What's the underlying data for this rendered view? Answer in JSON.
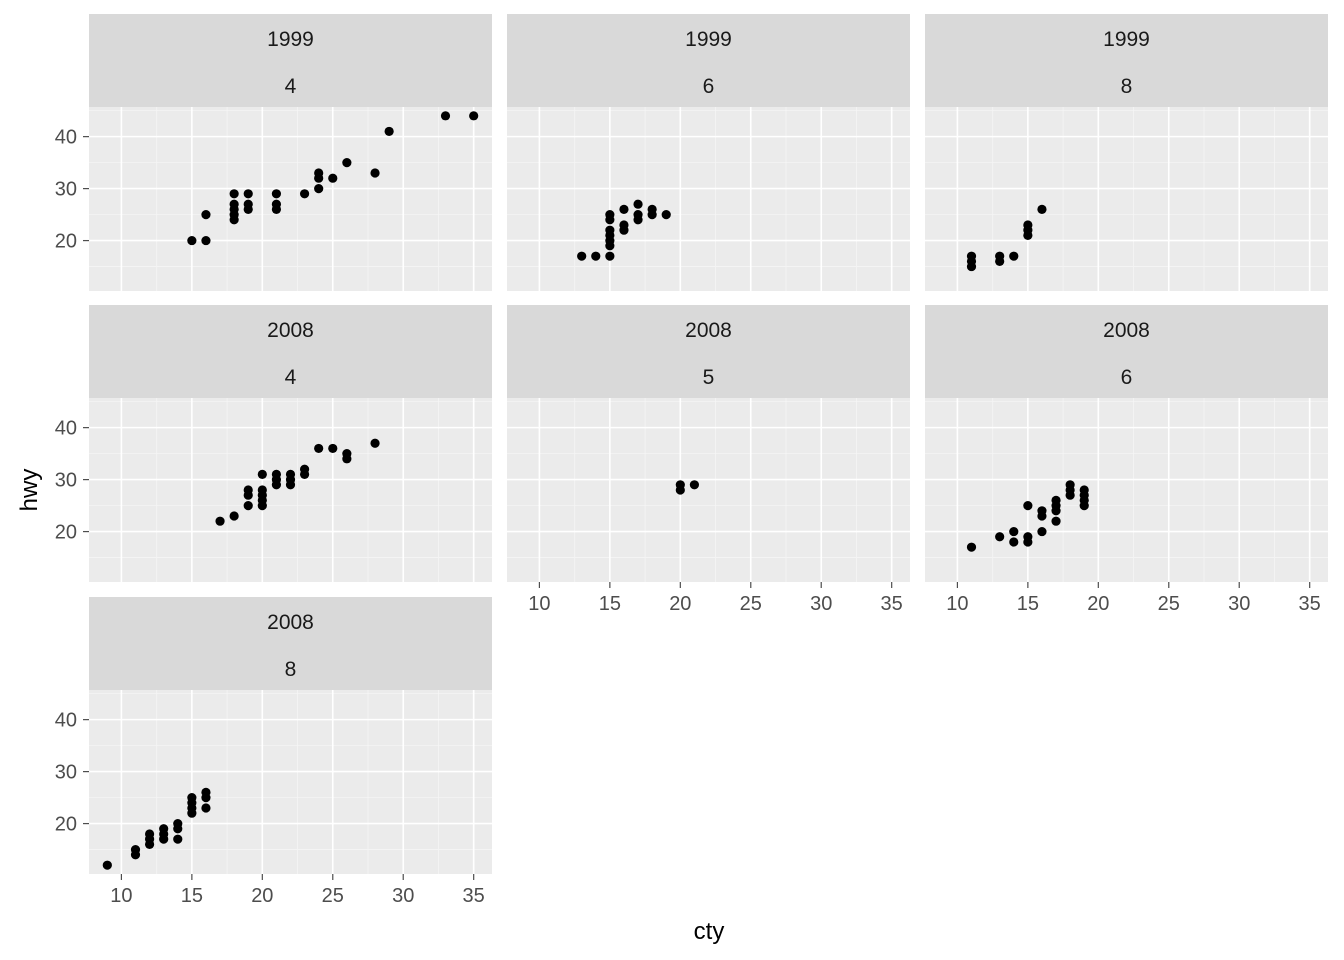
{
  "chart_data": {
    "type": "scatter",
    "facet_by": [
      "year",
      "cyl"
    ],
    "xlabel": "cty",
    "ylabel": "hwy",
    "xlim": [
      7.7,
      36.3
    ],
    "ylim": [
      10.3,
      45.7
    ],
    "x_ticks": [
      10,
      15,
      20,
      25,
      30,
      35
    ],
    "y_ticks": [
      20,
      30,
      40
    ],
    "x_tick_labels": [
      "10",
      "15",
      "20",
      "25",
      "30",
      "35"
    ],
    "y_tick_labels": [
      "20",
      "30",
      "40"
    ],
    "grid": true,
    "panels": [
      {
        "year": "1999",
        "cyl": "4",
        "points": [
          [
            15,
            20
          ],
          [
            16,
            20
          ],
          [
            16,
            25
          ],
          [
            18,
            24
          ],
          [
            18,
            25
          ],
          [
            18,
            26
          ],
          [
            18,
            27
          ],
          [
            18,
            29
          ],
          [
            19,
            26
          ],
          [
            19,
            27
          ],
          [
            19,
            29
          ],
          [
            21,
            26
          ],
          [
            21,
            27
          ],
          [
            21,
            29
          ],
          [
            23,
            29
          ],
          [
            24,
            30
          ],
          [
            24,
            32
          ],
          [
            24,
            33
          ],
          [
            25,
            32
          ],
          [
            26,
            35
          ],
          [
            28,
            33
          ],
          [
            29,
            41
          ],
          [
            33,
            44
          ],
          [
            35,
            44
          ]
        ]
      },
      {
        "year": "1999",
        "cyl": "6",
        "points": [
          [
            13,
            17
          ],
          [
            14,
            17
          ],
          [
            15,
            17
          ],
          [
            15,
            19
          ],
          [
            15,
            20
          ],
          [
            15,
            21
          ],
          [
            15,
            22
          ],
          [
            15,
            24
          ],
          [
            15,
            25
          ],
          [
            16,
            22
          ],
          [
            16,
            23
          ],
          [
            16,
            26
          ],
          [
            17,
            24
          ],
          [
            17,
            25
          ],
          [
            17,
            27
          ],
          [
            18,
            25
          ],
          [
            18,
            26
          ],
          [
            19,
            25
          ]
        ]
      },
      {
        "year": "1999",
        "cyl": "8",
        "points": [
          [
            11,
            15
          ],
          [
            11,
            16
          ],
          [
            11,
            17
          ],
          [
            13,
            16
          ],
          [
            13,
            17
          ],
          [
            14,
            17
          ],
          [
            15,
            21
          ],
          [
            15,
            22
          ],
          [
            15,
            23
          ],
          [
            16,
            26
          ]
        ]
      },
      {
        "year": "2008",
        "cyl": "4",
        "points": [
          [
            17,
            22
          ],
          [
            18,
            23
          ],
          [
            19,
            25
          ],
          [
            19,
            27
          ],
          [
            19,
            28
          ],
          [
            20,
            25
          ],
          [
            20,
            26
          ],
          [
            20,
            27
          ],
          [
            20,
            28
          ],
          [
            20,
            31
          ],
          [
            21,
            29
          ],
          [
            21,
            30
          ],
          [
            21,
            31
          ],
          [
            22,
            29
          ],
          [
            22,
            30
          ],
          [
            22,
            31
          ],
          [
            23,
            31
          ],
          [
            23,
            32
          ],
          [
            24,
            36
          ],
          [
            25,
            36
          ],
          [
            26,
            34
          ],
          [
            26,
            35
          ],
          [
            28,
            37
          ]
        ]
      },
      {
        "year": "2008",
        "cyl": "5",
        "points": [
          [
            20,
            28
          ],
          [
            20,
            29
          ],
          [
            21,
            29
          ]
        ]
      },
      {
        "year": "2008",
        "cyl": "6",
        "points": [
          [
            11,
            17
          ],
          [
            13,
            19
          ],
          [
            14,
            18
          ],
          [
            14,
            20
          ],
          [
            15,
            18
          ],
          [
            15,
            19
          ],
          [
            15,
            25
          ],
          [
            16,
            20
          ],
          [
            16,
            23
          ],
          [
            16,
            24
          ],
          [
            17,
            22
          ],
          [
            17,
            24
          ],
          [
            17,
            25
          ],
          [
            17,
            26
          ],
          [
            18,
            27
          ],
          [
            18,
            28
          ],
          [
            18,
            29
          ],
          [
            19,
            25
          ],
          [
            19,
            26
          ],
          [
            19,
            27
          ],
          [
            19,
            28
          ]
        ]
      },
      {
        "year": "2008",
        "cyl": "8",
        "points": [
          [
            9,
            12
          ],
          [
            11,
            14
          ],
          [
            11,
            15
          ],
          [
            12,
            16
          ],
          [
            12,
            17
          ],
          [
            12,
            18
          ],
          [
            13,
            17
          ],
          [
            13,
            18
          ],
          [
            13,
            19
          ],
          [
            14,
            17
          ],
          [
            14,
            19
          ],
          [
            14,
            20
          ],
          [
            15,
            22
          ],
          [
            15,
            23
          ],
          [
            15,
            24
          ],
          [
            15,
            25
          ],
          [
            16,
            23
          ],
          [
            16,
            25
          ],
          [
            16,
            26
          ]
        ]
      }
    ]
  }
}
